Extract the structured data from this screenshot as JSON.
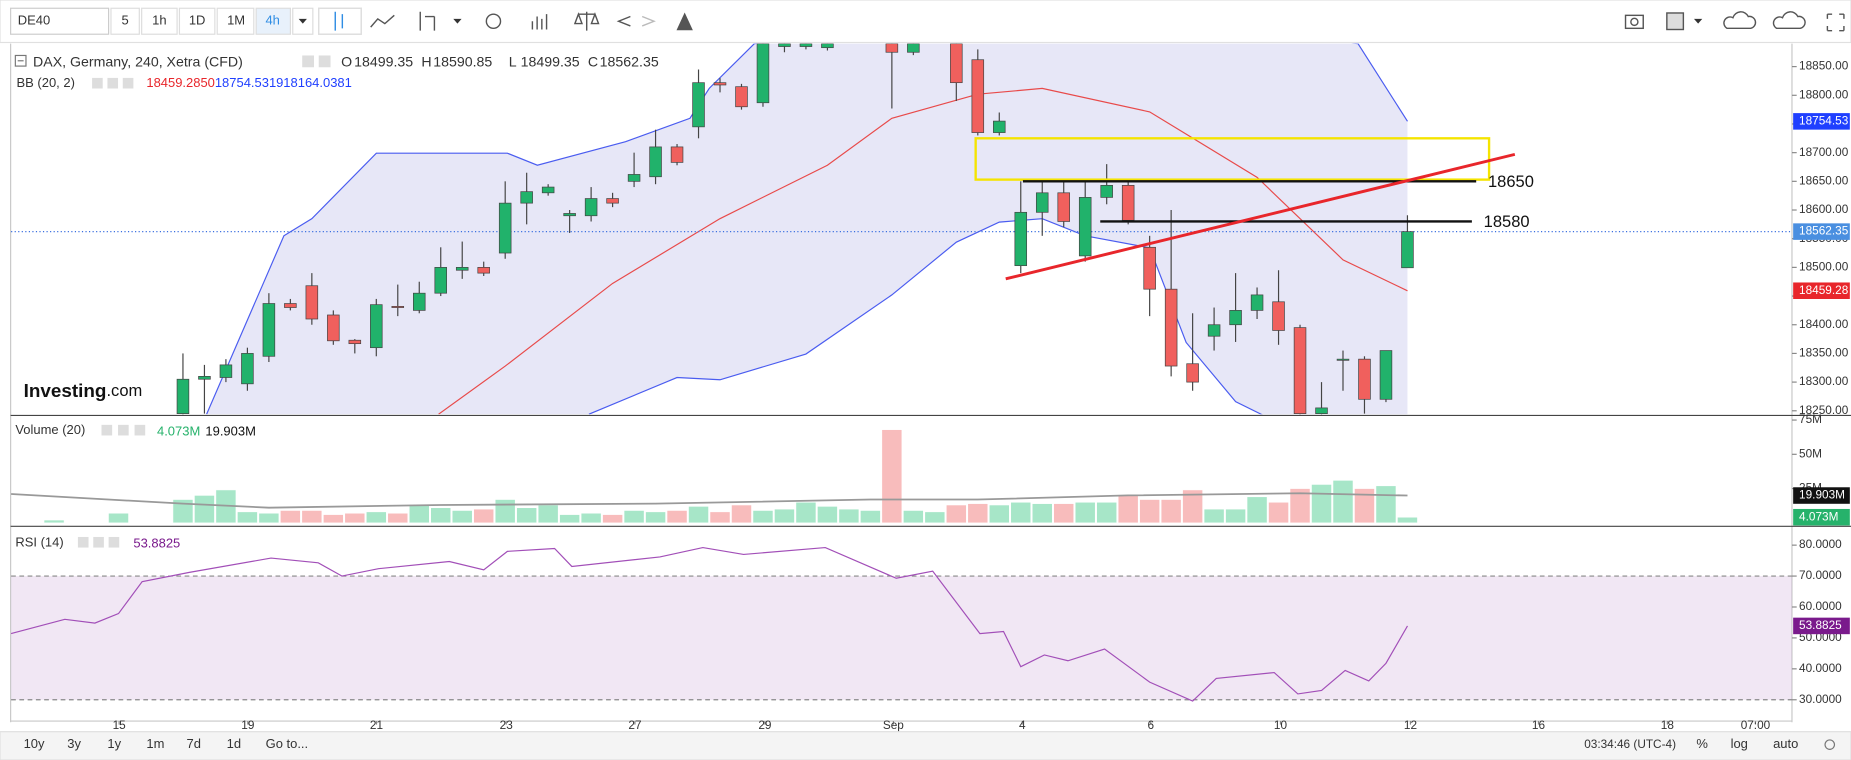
{
  "toolbar": {
    "symbol": "DE40",
    "intervals": [
      "5",
      "1h",
      "1D",
      "1M",
      "4h"
    ]
  },
  "legend": {
    "title": "DAX, Germany, 240, Xetra (CFD)",
    "ohlc": [
      {
        "key": "O",
        "value": "18499.35"
      },
      {
        "key": "H",
        "value": "18590.85"
      },
      {
        "key": "L",
        "value": "18499.35"
      },
      {
        "key": "C",
        "value": "18562.35"
      }
    ],
    "bb": {
      "name": "BB (20, 2)",
      "values": [
        "18459.2850",
        "18754.5319",
        "18164.0381"
      ]
    },
    "volume": {
      "name": "Volume (20)",
      "values": [
        "4.073M",
        "19.903M"
      ]
    },
    "rsi": {
      "name": "RSI (14)",
      "value": "53.8825"
    }
  },
  "logo": {
    "name": "Investing",
    "suffix": ".com"
  },
  "footer": {
    "ranges": [
      "10y",
      "3y",
      "1y",
      "1m",
      "7d",
      "1d"
    ],
    "goto": "Go to...",
    "time": "03:34:46 (UTC-4)",
    "options": [
      "%",
      "log",
      "auto"
    ]
  },
  "chart_data": [
    {
      "type": "candlestick",
      "xlim": [
        0,
        82.9
      ],
      "ylim": [
        18244,
        18890
      ],
      "yticks": [
        {
          "value": 18250,
          "label": "18250.00"
        },
        {
          "value": 18300,
          "label": "18300.00"
        },
        {
          "value": 18350,
          "label": "18350.00"
        },
        {
          "value": 18400,
          "label": "18400.00"
        },
        {
          "value": 18450,
          "label": "18450.00"
        },
        {
          "value": 18500,
          "label": "18500.00"
        },
        {
          "value": 18550,
          "label": "18550.00"
        },
        {
          "value": 18600,
          "label": "18600.00"
        },
        {
          "value": 18650,
          "label": "18650.00"
        },
        {
          "value": 18700,
          "label": "18700.00"
        },
        {
          "value": 18750,
          "label": "18750.00"
        },
        {
          "value": 18800,
          "label": "18800.00"
        },
        {
          "value": 18850,
          "label": "18850.00"
        }
      ],
      "up_color": "#21b26b",
      "down_color": "#f0605d",
      "open": [
        null,
        null,
        null,
        null,
        null,
        null,
        null,
        null,
        18245,
        18305,
        18308,
        18297,
        18345,
        18437,
        18468,
        18417,
        18373,
        18360,
        18432,
        18425,
        18455,
        18495,
        18500,
        18525,
        18612,
        18630,
        18590,
        18590,
        18620,
        18650,
        18658,
        18710,
        18745,
        18822,
        18815,
        18787,
        18885,
        18885,
        18883,
        null,
        null,
        18890,
        18875,
        null,
        18890,
        18862,
        18735,
        18503,
        18596,
        18630,
        18520,
        18622,
        18643,
        18535,
        18462,
        18332,
        18380,
        18400,
        18425,
        18440,
        18395,
        18245,
        18338,
        18340,
        18270,
        18499.35
      ],
      "high": [
        null,
        null,
        null,
        null,
        null,
        null,
        null,
        null,
        18350,
        18330,
        18340,
        18360,
        18455,
        18445,
        18490,
        18425,
        18375,
        18445,
        18470,
        18475,
        18535,
        18545,
        18510,
        18650,
        18665,
        18645,
        18600,
        18640,
        18630,
        18700,
        18740,
        18715,
        18845,
        18830,
        18820,
        18900,
        18900,
        18895,
        18895,
        null,
        null,
        18900,
        18900,
        null,
        18900,
        18880,
        18770,
        18650,
        18650,
        18650,
        18650,
        18680,
        18650,
        18555,
        18600,
        18420,
        18430,
        18490,
        18465,
        18495,
        18400,
        18300,
        18355,
        18345,
        18355,
        18590.85
      ],
      "low": [
        null,
        null,
        null,
        null,
        null,
        null,
        null,
        null,
        18230,
        18245,
        18300,
        18285,
        18335,
        18425,
        18400,
        18365,
        18350,
        18345,
        18415,
        18420,
        18450,
        18480,
        18485,
        18515,
        18575,
        18625,
        18560,
        18580,
        18605,
        18640,
        18645,
        18678,
        18725,
        18805,
        18775,
        18780,
        18875,
        18880,
        18878,
        null,
        null,
        18777,
        18870,
        null,
        18790,
        18730,
        18730,
        18490,
        18555,
        18570,
        18510,
        18610,
        18575,
        18415,
        18310,
        18285,
        18355,
        18370,
        18410,
        18365,
        18240,
        18240,
        18285,
        18245,
        18265,
        18499.35
      ],
      "close": [
        null,
        null,
        null,
        null,
        null,
        null,
        null,
        null,
        18305,
        18310,
        18330,
        18350,
        18437,
        18430,
        18410,
        18372,
        18367,
        18435,
        18430,
        18455,
        18500,
        18500,
        18490,
        18612,
        18632,
        18640,
        18594,
        18620,
        18612,
        18662,
        18710,
        18683,
        18822,
        18818,
        18780,
        18890,
        18890,
        18890,
        18890,
        null,
        null,
        18875,
        18890,
        null,
        18822,
        18735,
        18755,
        18596,
        18630,
        18580,
        18622,
        18643,
        18582,
        18462,
        18328,
        18300,
        18400,
        18425,
        18452,
        18390,
        18245,
        18255,
        18340,
        18270,
        18355,
        18562.35
      ],
      "band_fill": "rgba(170,170,225,0.28)",
      "bands": {
        "upper": {
          "color": "#4a5cf0",
          "x": [
            9.1,
            12.7,
            14,
            17,
            23.1,
            24.5,
            28.6,
            31.6,
            32.5,
            34.6,
            48,
            62.7,
            65
          ],
          "values": [
            18244,
            18555,
            18585,
            18699,
            18699,
            18678,
            18719,
            18760,
            18812,
            18890,
            18950,
            18890,
            18754.5319
          ]
        },
        "middle": {
          "color": "#e84a4a",
          "x": [
            19.9,
            23,
            28,
            33,
            38,
            41,
            45,
            48,
            53,
            58,
            62,
            65
          ],
          "values": [
            18244,
            18328,
            18472,
            18585,
            18678,
            18760,
            18802,
            18812,
            18771,
            18657,
            18513,
            18459.285
          ]
        },
        "lower": {
          "color": "#4a5cf0",
          "x": [
            26.9,
            31,
            33,
            37,
            41,
            44,
            46,
            48,
            50,
            53,
            54.7,
            57,
            58.3,
            65
          ],
          "values": [
            18244,
            18308,
            18304,
            18349,
            18452,
            18544,
            18579,
            18585,
            18555,
            18534,
            18369,
            18266,
            18242,
            18164.0381
          ]
        }
      },
      "price_line_color": "#3a6fe0",
      "price_labels": [
        {
          "value": 18754.53,
          "color": "#1f3fff"
        },
        {
          "value": 18562.35,
          "color": "#4a8fe0"
        },
        {
          "value": 18459.28,
          "color": "#e8262b"
        }
      ],
      "rectangle": {
        "x": [
          44.9,
          68.8
        ],
        "y": [
          18653,
          18725
        ],
        "color": "#f5e400"
      },
      "trendline": {
        "x": [
          46.3,
          70
        ],
        "y": [
          18480,
          18697
        ],
        "color": "#e8262b"
      },
      "levels": [
        {
          "value": 18650,
          "x": [
            47.1,
            68.2
          ]
        },
        {
          "value": 18580,
          "x": [
            50.7,
            68
          ]
        }
      ]
    },
    {
      "type": "bar",
      "xlim": [
        0,
        82.9
      ],
      "ylim": [
        0,
        78.4
      ],
      "yticks": [
        {
          "value": 25,
          "label": "25M"
        },
        {
          "value": 50,
          "label": "50M"
        },
        {
          "value": 75,
          "label": "75M"
        }
      ],
      "up_color": "#a7e6c8",
      "down_color": "#f8bcbc",
      "values": [
        null,
        null,
        2,
        null,
        null,
        7,
        null,
        null,
        17,
        20,
        24,
        8,
        7,
        9,
        9,
        6,
        7,
        8,
        7,
        13,
        11,
        9,
        10,
        17,
        11,
        13,
        6,
        7,
        6,
        9,
        8,
        9,
        12,
        8,
        13,
        9,
        10,
        15,
        12,
        10,
        9,
        68,
        9,
        8,
        13,
        14,
        13,
        15,
        14,
        14,
        15,
        15,
        20,
        17,
        17,
        24,
        10,
        10,
        19,
        15,
        25,
        28,
        31,
        25,
        27,
        4.073
      ],
      "ma": {
        "color": "#999999",
        "x": [
          0,
          8,
          12,
          20,
          30,
          40,
          45,
          52,
          60,
          65
        ],
        "values": [
          21,
          14,
          11,
          13,
          14,
          17,
          17,
          20,
          21.5,
          19.903
        ]
      },
      "value_labels": [
        {
          "value": 19.903,
          "label": "19.903M",
          "color": "#111111"
        },
        {
          "value": 4.073,
          "label": "4.073M",
          "color": "#26b26b"
        }
      ]
    },
    {
      "type": "line",
      "xlim": [
        0,
        82.9
      ],
      "ylim": [
        23.5,
        85.7
      ],
      "yticks": [
        {
          "value": 30,
          "label": "30.0000"
        },
        {
          "value": 40,
          "label": "40.0000"
        },
        {
          "value": 50,
          "label": "50.0000"
        },
        {
          "value": 60,
          "label": "60.0000"
        },
        {
          "value": 70,
          "label": "70.0000"
        },
        {
          "value": 80,
          "label": "80.0000"
        }
      ],
      "band": [
        30,
        70
      ],
      "band_color": "rgba(200,160,210,0.25)",
      "color": "#a24fb8",
      "x": [
        0,
        2.5,
        3.9,
        5,
        6.1,
        8.3,
        12.1,
        14.3,
        15.4,
        17.1,
        20.4,
        22,
        23.1,
        25.3,
        26.1,
        30.2,
        32.2,
        34.1,
        37.9,
        41.2,
        42.9,
        45.1,
        46.2,
        47,
        48.1,
        49.2,
        50.9,
        53,
        55,
        56.1,
        58.8,
        59.9,
        61,
        62.1,
        63.2,
        64,
        65
      ],
      "values": [
        51.4,
        56,
        54.8,
        57.9,
        68.2,
        71.2,
        75.8,
        74.3,
        70,
        72.4,
        74.7,
        72,
        78,
        78.9,
        73.1,
        76.2,
        79.2,
        77,
        79.2,
        69.3,
        71.6,
        51.4,
        52.1,
        40.7,
        44.5,
        42.6,
        46.4,
        35.7,
        29.6,
        36.9,
        38.8,
        31.9,
        33,
        39.5,
        36.1,
        41.8,
        53.8825
      ],
      "value_labels": [
        {
          "value": 53.8825,
          "color": "#7a1a8c"
        }
      ],
      "xticks": [
        {
          "value": 5.03,
          "label": "15"
        },
        {
          "value": 11.02,
          "label": "19"
        },
        {
          "value": 17.01,
          "label": "21"
        },
        {
          "value": 23.05,
          "label": "23"
        },
        {
          "value": 29.04,
          "label": "27"
        },
        {
          "value": 35.09,
          "label": "29"
        },
        {
          "value": 41.07,
          "label": "Sep"
        },
        {
          "value": 47.07,
          "label": "4"
        },
        {
          "value": 53.05,
          "label": "6"
        },
        {
          "value": 59.09,
          "label": "10"
        },
        {
          "value": 65.14,
          "label": "12"
        },
        {
          "value": 71.1,
          "label": "16"
        },
        {
          "value": 77.1,
          "label": "18"
        },
        {
          "value": 81.2,
          "label": "07:00"
        }
      ]
    }
  ]
}
